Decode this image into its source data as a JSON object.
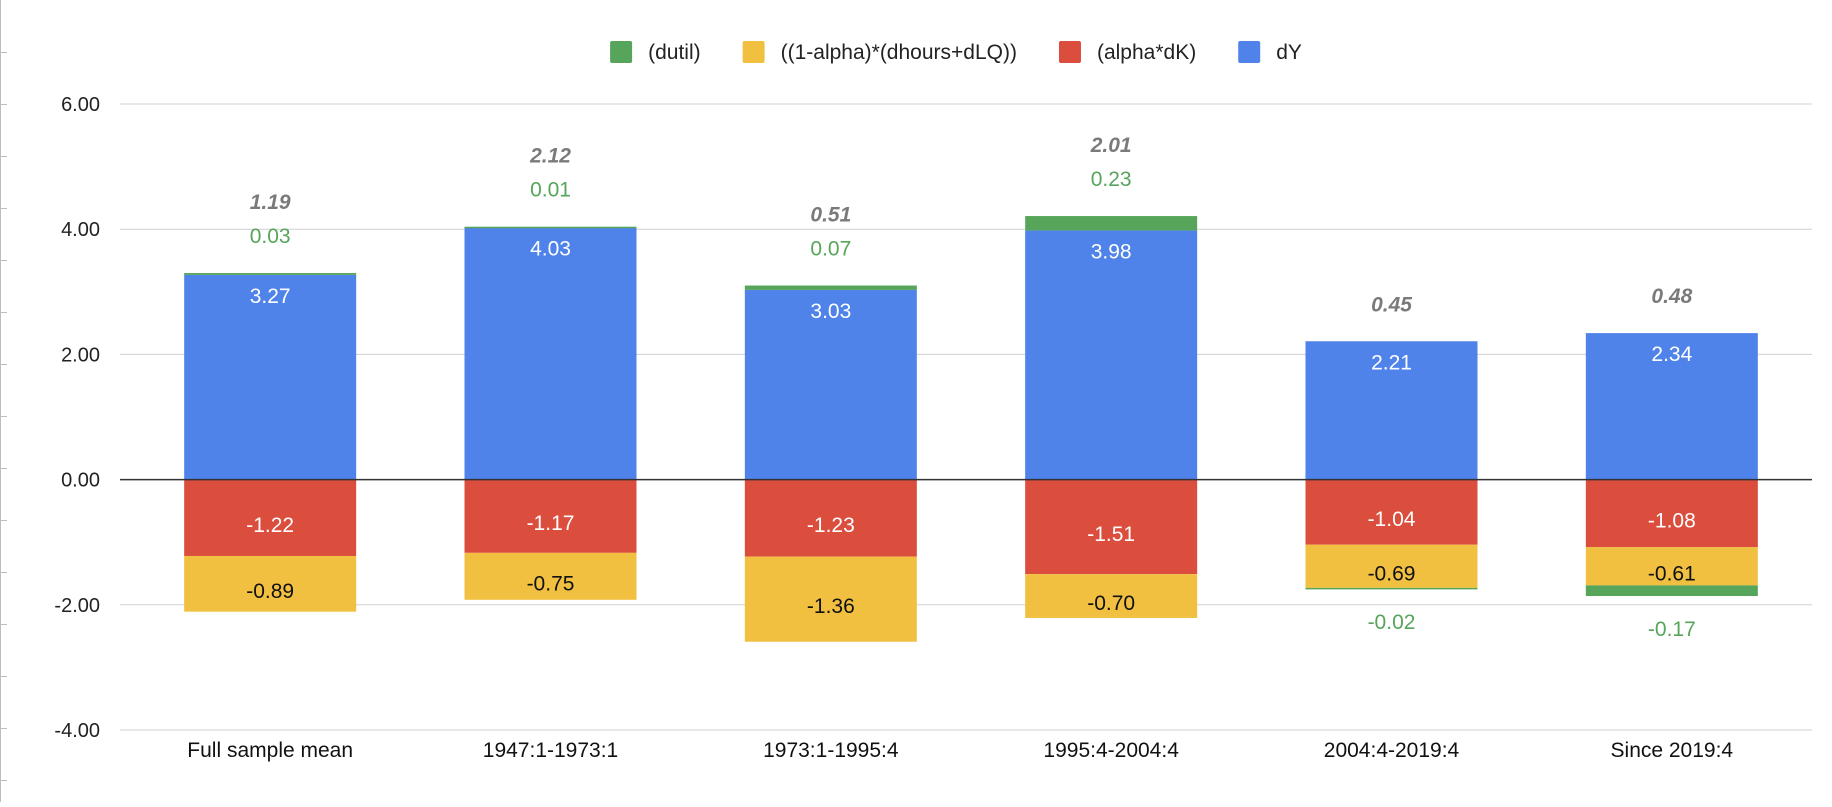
{
  "chart_data": {
    "type": "bar",
    "stacked": true,
    "categories": [
      "Full sample mean",
      "1947:1-1973:1",
      "1973:1-1995:4",
      "1995:4-2004:4",
      "2004:4-2019:4",
      "Since 2019:4"
    ],
    "series": [
      {
        "name": "(dutil)",
        "color": "#57a55a",
        "values": [
          0.03,
          0.01,
          0.07,
          0.23,
          -0.02,
          -0.17
        ]
      },
      {
        "name": "((1-alpha)*(dhours+dLQ))",
        "color": "#f1c040",
        "values": [
          -0.89,
          -0.75,
          -1.36,
          -0.7,
          -0.69,
          -0.61
        ]
      },
      {
        "name": "(alpha*dK)",
        "color": "#db4d3d",
        "values": [
          -1.22,
          -1.17,
          -1.23,
          -1.51,
          -1.04,
          -1.08
        ]
      },
      {
        "name": "dY",
        "color": "#4f83ea",
        "values": [
          3.27,
          4.03,
          3.03,
          3.98,
          2.21,
          2.34
        ]
      }
    ],
    "totals": [
      1.19,
      2.12,
      0.51,
      2.01,
      0.45,
      0.48
    ],
    "totals_labels": [
      "1.19",
      "2.12",
      "0.51",
      "2.01",
      "0.45",
      "0.48"
    ],
    "data_labels": {
      "(dutil)": [
        "0.03",
        "0.01",
        "0.07",
        "0.23",
        "-0.02",
        "-0.17"
      ],
      "((1-alpha)*(dhours+dLQ))": [
        "-0.89",
        "-0.75",
        "-1.36",
        "-0.70",
        "-0.69",
        "-0.61"
      ],
      "(alpha*dK)": [
        "-1.22",
        "-1.17",
        "-1.23",
        "-1.51",
        "-1.04",
        "-1.08"
      ],
      "dY": [
        "3.27",
        "4.03",
        "3.03",
        "3.98",
        "2.21",
        "2.34"
      ]
    },
    "yticks": [
      6,
      4,
      2,
      0,
      -2,
      -4
    ],
    "ytick_labels": [
      "6.00",
      "4.00",
      "2.00",
      "0.00",
      "-2.00",
      "-4.00"
    ],
    "ylim": [
      -4,
      6
    ],
    "title": "",
    "xlabel": "",
    "ylabel": "",
    "grid": true,
    "legend_position": "top-center"
  }
}
